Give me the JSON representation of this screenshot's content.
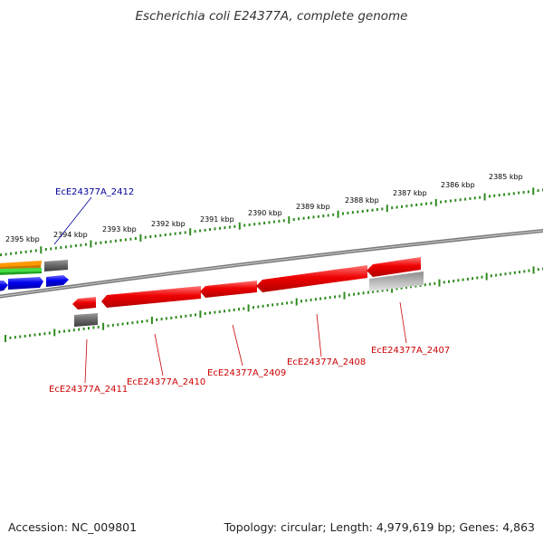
{
  "title": "Escherichia coli E24377A, complete genome",
  "footer": {
    "accession": "Accession: NC_009801",
    "summary": "Topology: circular; Length: 4,979,619 bp; Genes: 4,863"
  },
  "ticks": [
    "2395 kbp",
    "2394 kbp",
    "2393 kbp",
    "2392 kbp",
    "2391 kbp",
    "2390 kbp",
    "2389 kbp",
    "2388 kbp",
    "2387 kbp",
    "2386 kbp",
    "2385 kbp"
  ],
  "genes": {
    "g2412": "EcE24377A_2412",
    "g2411": "EcE24377A_2411",
    "g2410": "EcE24377A_2410",
    "g2409": "EcE24377A_2409",
    "g2408": "EcE24377A_2408",
    "g2407": "EcE24377A_2407"
  },
  "colors": {
    "background": "#ffffff",
    "backbone": "#808080",
    "tick": "#2e8b1e",
    "highlight_gene": "#ee0000",
    "highlight_label": "#cc0000",
    "label_2412": "#00009c",
    "cds_blue": "#0000ee",
    "rna_green": "#33cc33",
    "orange": "#ff9900",
    "gray_dark": "#666666",
    "gray_light": "#b8b8b8"
  }
}
